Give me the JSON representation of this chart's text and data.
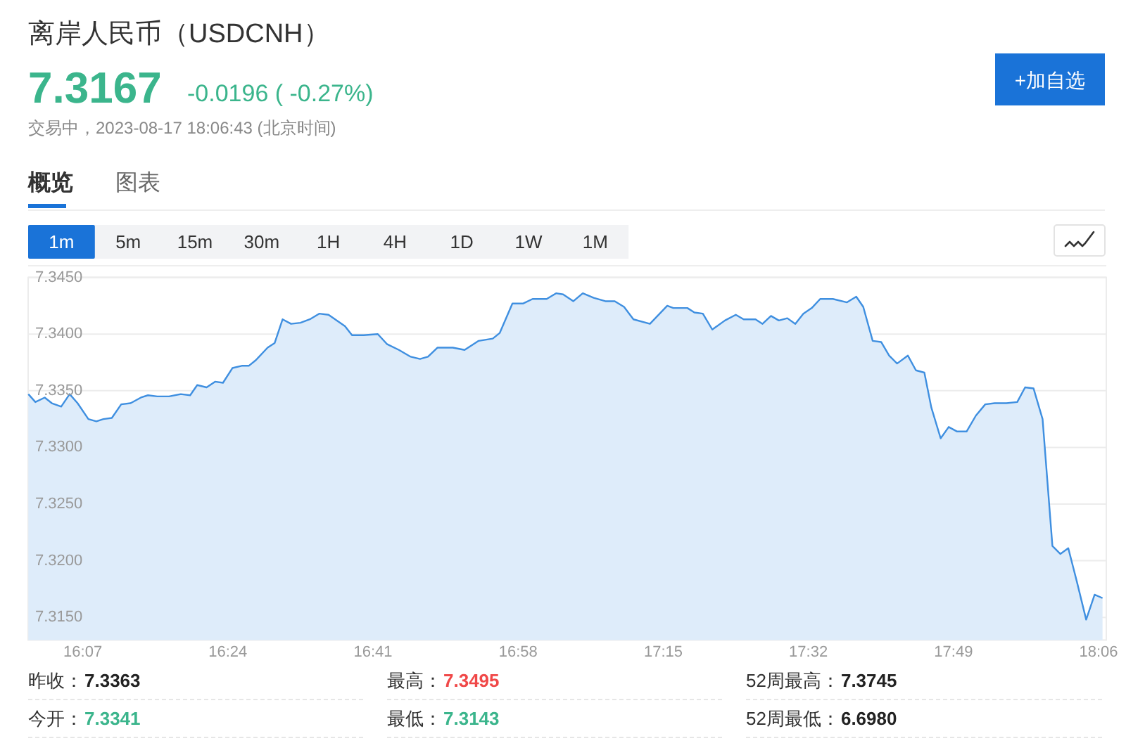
{
  "chart_data": {
    "type": "area",
    "title": "离岸人民币（USDCNH）",
    "annotations": [
      "7.3167",
      "-0.0196 ( -0.27%)",
      "交易中，2023-08-17 18:06:43 (北京时间)",
      "+加自选",
      "概览",
      "图表",
      "1m",
      "5m",
      "15m",
      "30m",
      "1H",
      "4H",
      "1D",
      "1W",
      "1M",
      "昨收：",
      "7.3363",
      "最高：",
      "7.3495",
      "52周最高：",
      "7.3745",
      "今开：",
      "7.3341",
      "最低：",
      "7.3143",
      "52周最低：",
      "6.6980"
    ],
    "color": "#3f8fe0",
    "x": [
      16.0104,
      16.0241,
      16.0424,
      16.0562,
      16.0745,
      16.091,
      16.1065,
      16.1276,
      16.1432,
      16.1569,
      16.1734,
      16.1917,
      16.21,
      16.2302,
      16.2439,
      16.2622,
      16.2851,
      16.308,
      16.3263,
      16.3401,
      16.3584,
      16.3749,
      16.3904,
      16.4088,
      16.4271,
      16.4408,
      16.4546,
      16.4775,
      16.4912,
      16.5068,
      16.5233,
      16.5416,
      16.5599,
      16.5782,
      16.5965,
      16.6286,
      16.6423,
      16.6652,
      16.6927,
      16.711,
      16.7339,
      16.7568,
      16.7751,
      16.7907,
      16.809,
      16.8392,
      16.8621,
      16.8896,
      16.9171,
      16.9308,
      16.9555,
      16.9766,
      16.9949,
      17.0224,
      17.0407,
      17.0545,
      17.0745,
      17.0929,
      17.1141,
      17.1369,
      17.1553,
      17.1734,
      17.1918,
      17.224,
      17.2578,
      17.2696,
      17.2971,
      17.3108,
      17.3273,
      17.3457,
      17.3704,
      17.3916,
      17.407,
      17.4301,
      17.4438,
      17.4603,
      17.4757,
      17.4922,
      17.5078,
      17.5235,
      17.54,
      17.5564,
      17.5812,
      17.6087,
      17.6268,
      17.6405,
      17.6589,
      17.6754,
      17.6911,
      17.7065,
      17.7276,
      17.7433,
      17.7598,
      17.7735,
      17.7916,
      17.8073,
      17.8238,
      17.8422,
      17.8603,
      17.8787,
      17.8971,
      17.92,
      17.9411,
      17.9565,
      17.973,
      17.9906,
      18.0098,
      18.0252,
      18.0408,
      18.0573,
      18.0757,
      18.0922,
      18.1076
    ],
    "values": [
      7.3347,
      7.334,
      7.3344,
      7.3339,
      7.3336,
      7.3347,
      7.3339,
      7.3325,
      7.3323,
      7.3325,
      7.3326,
      7.3338,
      7.3339,
      7.3344,
      7.3346,
      7.3345,
      7.3345,
      7.3347,
      7.3346,
      7.3355,
      7.3353,
      7.3358,
      7.3357,
      7.337,
      7.3372,
      7.3372,
      7.3377,
      7.3388,
      7.3392,
      7.3413,
      7.3409,
      7.341,
      7.3413,
      7.3418,
      7.3417,
      7.3407,
      7.3399,
      7.3399,
      7.34,
      7.3391,
      7.3386,
      7.338,
      7.3378,
      7.338,
      7.3388,
      7.3388,
      7.3386,
      7.3394,
      7.3396,
      7.3401,
      7.3427,
      7.3427,
      7.3431,
      7.3431,
      7.3436,
      7.3435,
      7.3429,
      7.3436,
      7.3432,
      7.3429,
      7.3429,
      7.3424,
      7.3413,
      7.3409,
      7.3425,
      7.3423,
      7.3423,
      7.3419,
      7.3418,
      7.3404,
      7.3412,
      7.3417,
      7.3413,
      7.3413,
      7.3409,
      7.3416,
      7.3412,
      7.3414,
      7.3409,
      7.3418,
      7.3423,
      7.3431,
      7.3431,
      7.3428,
      7.3433,
      7.3424,
      7.3394,
      7.3393,
      7.3381,
      7.3374,
      7.3381,
      7.3368,
      7.3366,
      7.3335,
      7.3308,
      7.3318,
      7.3314,
      7.3314,
      7.3328,
      7.3338,
      7.3339,
      7.3339,
      7.334,
      7.3353,
      7.3352,
      7.3325,
      7.3213,
      7.3206,
      7.3211,
      7.3182,
      7.3148,
      7.317,
      7.3167
    ],
    "xlim": [
      16.01,
      18.115
    ],
    "ylim": [
      7.313,
      7.345
    ],
    "xticks": [
      {
        "value": 16.1167,
        "label": "16:07"
      },
      {
        "value": 16.4,
        "label": "16:24"
      },
      {
        "value": 16.6833,
        "label": "16:41"
      },
      {
        "value": 16.9667,
        "label": "16:58"
      },
      {
        "value": 17.25,
        "label": "17:15"
      },
      {
        "value": 17.5333,
        "label": "17:32"
      },
      {
        "value": 17.8167,
        "label": "17:49"
      },
      {
        "value": 18.1,
        "label": "18:06"
      }
    ],
    "yticks": [
      {
        "value": 7.315,
        "label": "7.3150"
      },
      {
        "value": 7.32,
        "label": "7.3200"
      },
      {
        "value": 7.325,
        "label": "7.3250"
      },
      {
        "value": 7.33,
        "label": "7.3300"
      },
      {
        "value": 7.335,
        "label": "7.3350"
      },
      {
        "value": 7.34,
        "label": "7.3400"
      },
      {
        "value": 7.345,
        "label": "7.3450"
      }
    ],
    "grid": "y"
  }
}
